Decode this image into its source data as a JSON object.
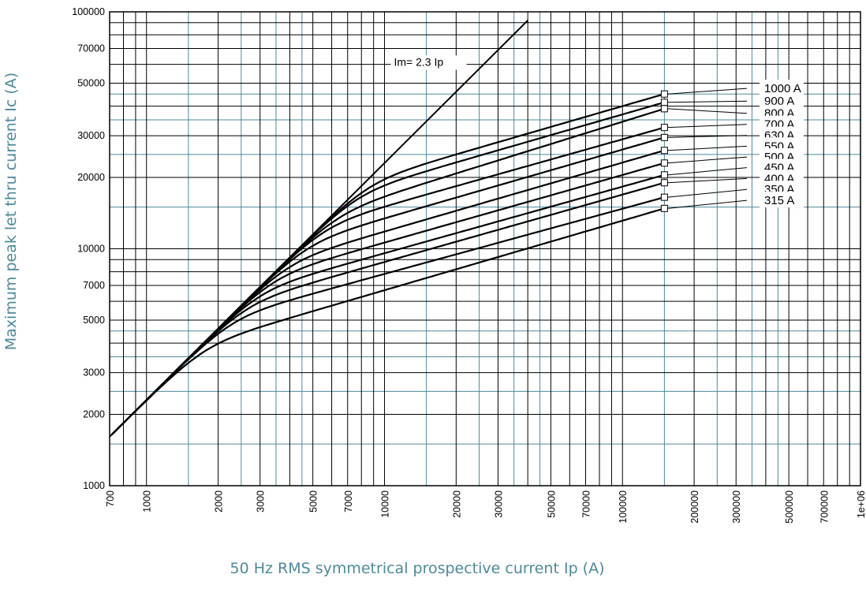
{
  "chart_data": {
    "type": "line",
    "xscale": "log",
    "yscale": "log",
    "xlim": [
      700,
      1000000
    ],
    "ylim": [
      1000,
      100000
    ],
    "xlabel": "50 Hz RMS symmetrical prospective current Ip (A)",
    "ylabel": "Maximum peak let thru current Ic (A)",
    "x_ticks": [
      {
        "v": 700,
        "label": "700"
      },
      {
        "v": 1000,
        "label": "1000"
      },
      {
        "v": 2000,
        "label": "2000"
      },
      {
        "v": 3000,
        "label": "3000"
      },
      {
        "v": 5000,
        "label": "5000"
      },
      {
        "v": 7000,
        "label": "7000"
      },
      {
        "v": 10000,
        "label": "10000"
      },
      {
        "v": 20000,
        "label": "20000"
      },
      {
        "v": 30000,
        "label": "30000"
      },
      {
        "v": 50000,
        "label": "50000"
      },
      {
        "v": 70000,
        "label": "70000"
      },
      {
        "v": 100000,
        "label": "100000"
      },
      {
        "v": 200000,
        "label": "200000"
      },
      {
        "v": 300000,
        "label": "300000"
      },
      {
        "v": 500000,
        "label": "500000"
      },
      {
        "v": 700000,
        "label": "700000"
      },
      {
        "v": 1000000,
        "label": "1e+06"
      }
    ],
    "y_ticks": [
      {
        "v": 1000,
        "label": "1000"
      },
      {
        "v": 2000,
        "label": "2000"
      },
      {
        "v": 3000,
        "label": "3000"
      },
      {
        "v": 5000,
        "label": "5000"
      },
      {
        "v": 7000,
        "label": "7000"
      },
      {
        "v": 10000,
        "label": "10000"
      },
      {
        "v": 20000,
        "label": "20000"
      },
      {
        "v": 30000,
        "label": "30000"
      },
      {
        "v": 50000,
        "label": "50000"
      },
      {
        "v": 70000,
        "label": "70000"
      },
      {
        "v": 100000,
        "label": "100000"
      }
    ],
    "black_grid_x": [
      700,
      800,
      900,
      1000,
      2000,
      3000,
      4000,
      5000,
      6000,
      7000,
      8000,
      9000,
      10000,
      20000,
      30000,
      40000,
      50000,
      60000,
      70000,
      80000,
      90000,
      100000,
      200000,
      300000,
      400000,
      500000,
      600000,
      700000,
      800000,
      900000,
      1000000
    ],
    "teal_grid_x": [
      1500,
      2500,
      3500,
      4500,
      15000,
      25000,
      35000,
      45000,
      150000,
      250000,
      350000,
      450000
    ],
    "black_grid_y": [
      1000,
      2000,
      3000,
      4000,
      5000,
      6000,
      7000,
      8000,
      9000,
      10000,
      20000,
      30000,
      40000,
      50000,
      60000,
      70000,
      80000,
      90000,
      100000
    ],
    "teal_grid_y": [
      1500,
      2500,
      3500,
      4500,
      15000,
      25000,
      35000,
      45000
    ],
    "limit_line": {
      "label": "Im= 2.3 Ip",
      "x": [
        700,
        40000
      ],
      "y": [
        1610,
        92000
      ]
    },
    "curve_end_x": 150000,
    "series": [
      {
        "name": "1000 A",
        "knee": 19500,
        "end": 45000
      },
      {
        "name": "900 A",
        "knee": 17500,
        "end": 41500
      },
      {
        "name": "800 A",
        "knee": 14500,
        "end": 39000
      },
      {
        "name": "700 A",
        "knee": 12800,
        "end": 32500
      },
      {
        "name": "630 A",
        "knee": 10800,
        "end": 29500
      },
      {
        "name": "550 A",
        "knee": 9000,
        "end": 26000
      },
      {
        "name": "500 A",
        "knee": 7800,
        "end": 23000
      },
      {
        "name": "450 A",
        "knee": 6800,
        "end": 20500
      },
      {
        "name": "400 A",
        "knee": 6000,
        "end": 19000
      },
      {
        "name": "350 A",
        "knee": 5200,
        "end": 16500
      },
      {
        "name": "315 A",
        "knee": 4000,
        "end": 14800
      }
    ],
    "label_y": [
      47500,
      42000,
      37300,
      33500,
      30100,
      27100,
      24400,
      22000,
      19800,
      17800,
      16000
    ]
  }
}
